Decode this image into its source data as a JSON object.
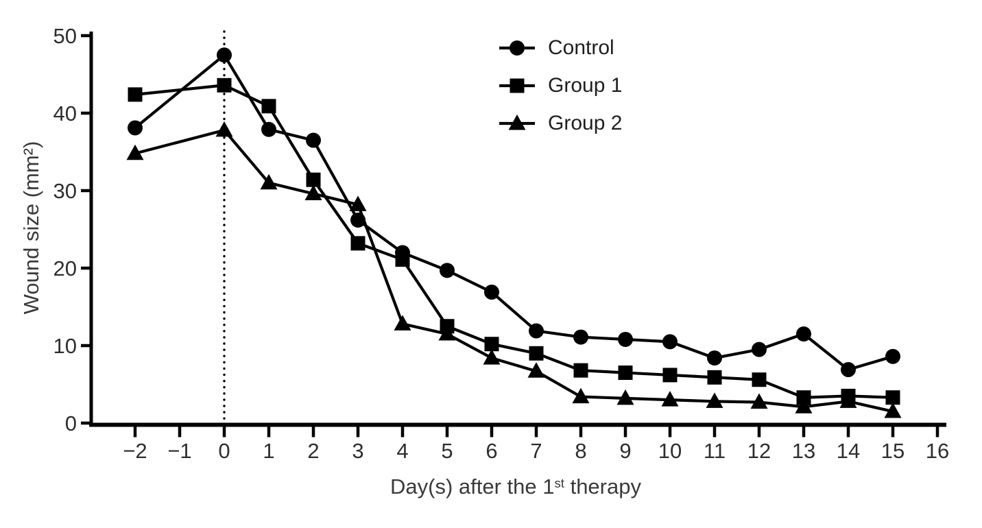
{
  "chart_data": {
    "type": "line",
    "title": "",
    "xlabel": {
      "prefix": "Day(s) after the 1",
      "superscript": "st",
      "suffix": " therapy"
    },
    "ylabel": "Wound size (mm²)",
    "x_axis": {
      "range": [
        -2,
        16
      ],
      "tick_values": [
        -2,
        -1,
        0,
        1,
        2,
        3,
        4,
        5,
        6,
        7,
        8,
        9,
        10,
        11,
        12,
        13,
        14,
        15,
        16
      ],
      "tick_labels": [
        "−2",
        "−1",
        "0",
        "1",
        "2",
        "3",
        "4",
        "5",
        "6",
        "7",
        "8",
        "9",
        "10",
        "11",
        "12",
        "13",
        "14",
        "15",
        "16"
      ]
    },
    "y_axis": {
      "range": [
        0,
        50
      ],
      "tick_values": [
        0,
        10,
        20,
        30,
        40,
        50
      ],
      "tick_labels": [
        "0",
        "10",
        "20",
        "30",
        "40",
        "50"
      ]
    },
    "x": [
      -2,
      0,
      1,
      2,
      3,
      4,
      5,
      6,
      7,
      8,
      9,
      10,
      11,
      12,
      13,
      14,
      15
    ],
    "series": [
      {
        "name": "Control",
        "marker": "circle",
        "values": [
          38.1,
          47.5,
          37.9,
          36.5,
          26.2,
          22.0,
          19.7,
          16.9,
          11.9,
          11.1,
          10.8,
          10.5,
          8.4,
          9.5,
          11.5,
          6.9,
          8.6
        ]
      },
      {
        "name": "Group 1",
        "marker": "square",
        "values": [
          42.4,
          43.6,
          40.9,
          31.4,
          23.2,
          21.1,
          12.5,
          10.2,
          9.0,
          6.8,
          6.5,
          6.2,
          5.9,
          5.6,
          3.3,
          3.5,
          3.3
        ]
      },
      {
        "name": "Group 2",
        "marker": "triangle",
        "values": [
          34.8,
          37.8,
          31.0,
          29.6,
          28.2,
          12.8,
          11.5,
          8.4,
          6.7,
          3.4,
          3.2,
          3.0,
          2.8,
          2.7,
          2.1,
          2.8,
          1.5
        ]
      }
    ],
    "annotations": [
      {
        "type": "vline",
        "x": 0,
        "style": "dotted"
      }
    ],
    "legend": {
      "position": "top-right"
    },
    "grid": false,
    "colors": {
      "series": "#000000",
      "tick_text": "#2e2e2e",
      "label_text": "#3a3a3a"
    }
  }
}
